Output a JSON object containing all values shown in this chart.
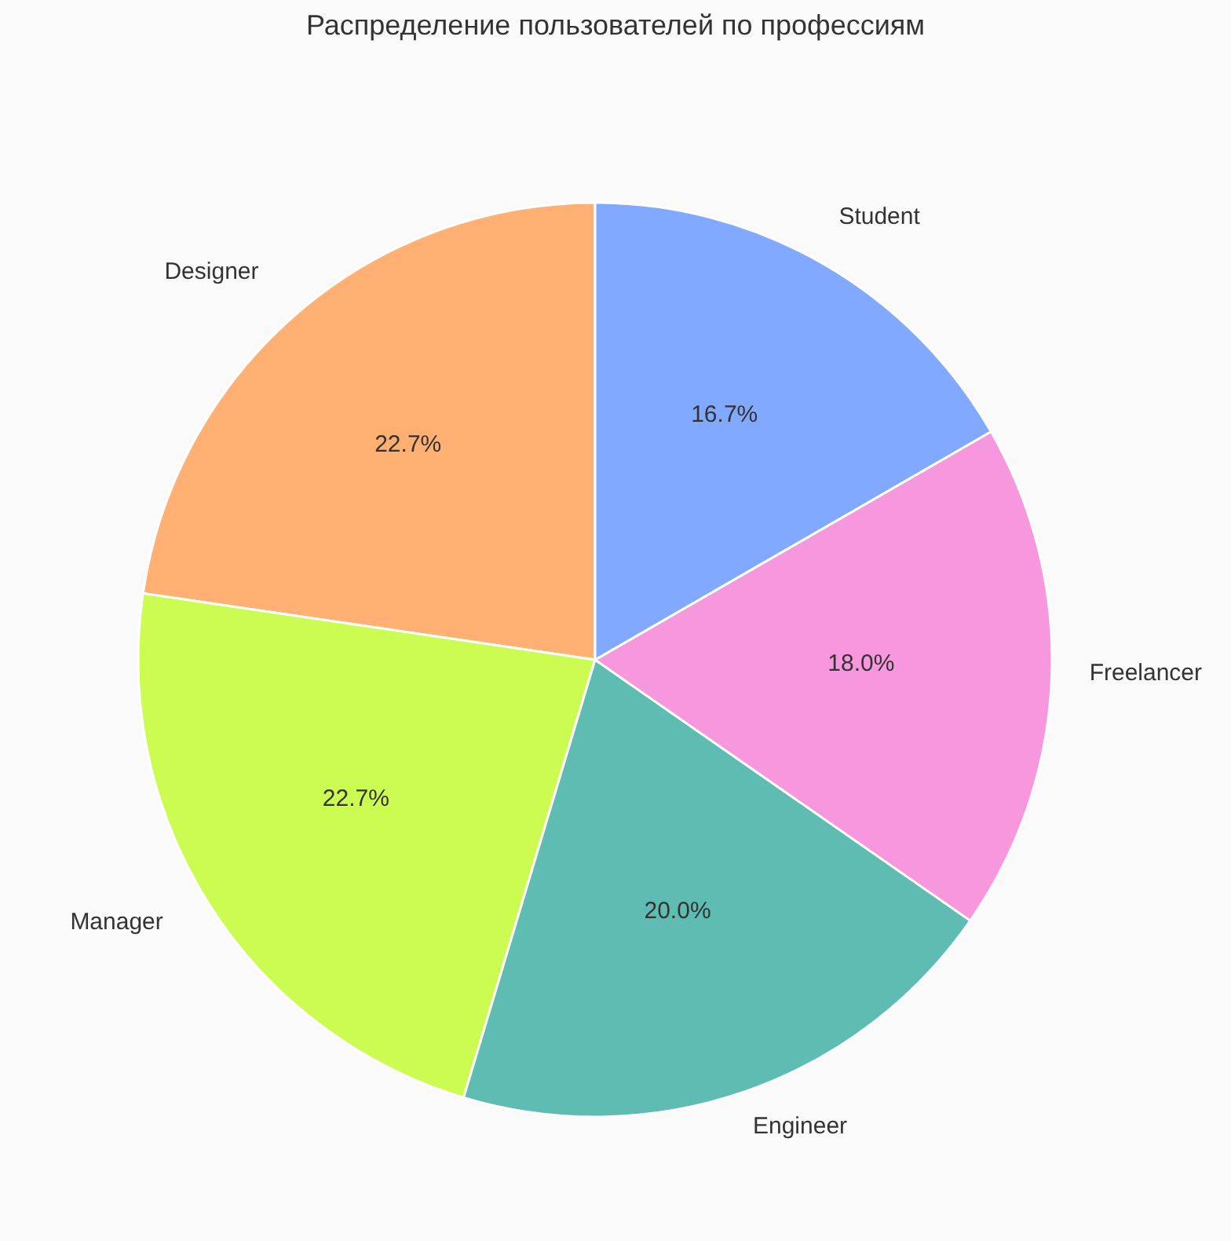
{
  "chart_data": {
    "type": "pie",
    "title": "Распределение пользователей по профессиям",
    "categories": [
      "Designer",
      "Manager",
      "Engineer",
      "Freelancer",
      "Student"
    ],
    "values": [
      22.7,
      22.7,
      20.0,
      18.0,
      16.7
    ],
    "colors": [
      "#ffb072",
      "#ccfc52",
      "#5fbcb3",
      "#f797de",
      "#80a9ff"
    ],
    "value_labels": [
      "22.7%",
      "22.7%",
      "20.0%",
      "18.0%",
      "16.7%"
    ]
  }
}
